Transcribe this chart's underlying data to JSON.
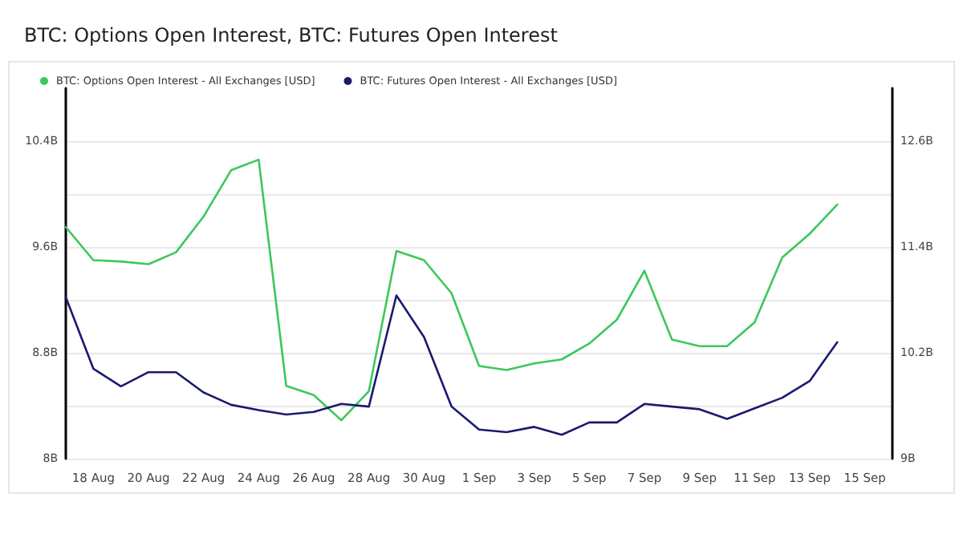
{
  "chart_data": {
    "type": "line",
    "title": "BTC: Options Open Interest, BTC: Futures Open Interest",
    "x": [
      "--08-17",
      "--08-18",
      "--08-19",
      "--08-20",
      "--08-21",
      "--08-22",
      "--08-23",
      "--08-24",
      "--08-25",
      "--08-26",
      "--08-27",
      "--08-28",
      "--08-29",
      "--08-30",
      "--08-31",
      "--09-01",
      "--09-02",
      "--09-03",
      "--09-04",
      "--09-05",
      "--09-06",
      "--09-07",
      "--09-08",
      "--09-09",
      "--09-10",
      "--09-11",
      "--09-12",
      "--09-13",
      "--09-14"
    ],
    "series": [
      {
        "name": "BTC: Options Open Interest - All Exchanges [USD]",
        "color": "#3cc85a",
        "values": [
          9.75,
          9.5,
          9.49,
          9.47,
          9.56,
          9.83,
          10.18,
          10.26,
          8.55,
          8.48,
          8.29,
          8.51,
          9.57,
          9.5,
          9.25,
          8.7,
          8.67,
          8.72,
          8.75,
          8.87,
          9.05,
          9.42,
          8.9,
          8.85,
          8.85,
          9.03,
          9.52,
          9.7,
          9.92
        ]
      },
      {
        "name": "BTC: Futures Open Interest - All Exchanges [USD]",
        "color": "#1a1a6e",
        "axis": "y2",
        "values": [
          10.83,
          10.02,
          9.82,
          9.98,
          9.98,
          9.75,
          9.61,
          9.55,
          9.5,
          9.53,
          9.62,
          9.59,
          10.85,
          10.38,
          9.59,
          9.33,
          9.3,
          9.36,
          9.27,
          9.41,
          9.41,
          9.62,
          9.59,
          9.56,
          9.45,
          9.57,
          9.69,
          9.88,
          10.32
        ]
      }
    ],
    "xlim": [
      "--08-17",
      "--09-16"
    ],
    "xticks": [
      {
        "value": "--08-18",
        "label": "18 Aug"
      },
      {
        "value": "--08-20",
        "label": "20 Aug"
      },
      {
        "value": "--08-22",
        "label": "22 Aug"
      },
      {
        "value": "--08-24",
        "label": "24 Aug"
      },
      {
        "value": "--08-26",
        "label": "26 Aug"
      },
      {
        "value": "--08-28",
        "label": "28 Aug"
      },
      {
        "value": "--08-30",
        "label": "30 Aug"
      },
      {
        "value": "--09-01",
        "label": "1 Sep"
      },
      {
        "value": "--09-03",
        "label": "3 Sep"
      },
      {
        "value": "--09-05",
        "label": "5 Sep"
      },
      {
        "value": "--09-07",
        "label": "7 Sep"
      },
      {
        "value": "--09-09",
        "label": "9 Sep"
      },
      {
        "value": "--09-11",
        "label": "11 Sep"
      },
      {
        "value": "--09-13",
        "label": "13 Sep"
      },
      {
        "value": "--09-15",
        "label": "15 Sep"
      }
    ],
    "ylim": [
      8,
      10.8
    ],
    "yticks": [
      {
        "value": 8,
        "label": "8B"
      },
      {
        "value": 8.4,
        "label": null
      },
      {
        "value": 8.8,
        "label": "8.8B"
      },
      {
        "value": 9.2,
        "label": null
      },
      {
        "value": 9.6,
        "label": "9.6B"
      },
      {
        "value": 10,
        "label": null
      },
      {
        "value": 10.4,
        "label": "10.4B"
      }
    ],
    "y2lim": [
      9,
      13.2
    ],
    "y2ticks": [
      {
        "value": 9,
        "label": "9B"
      },
      {
        "value": 10.2,
        "label": "10.2B"
      },
      {
        "value": 11.4,
        "label": "11.4B"
      },
      {
        "value": 12.6,
        "label": "12.6B"
      }
    ],
    "grid": "y",
    "legend": "top left",
    "marker": "none",
    "line_style": "solid"
  }
}
